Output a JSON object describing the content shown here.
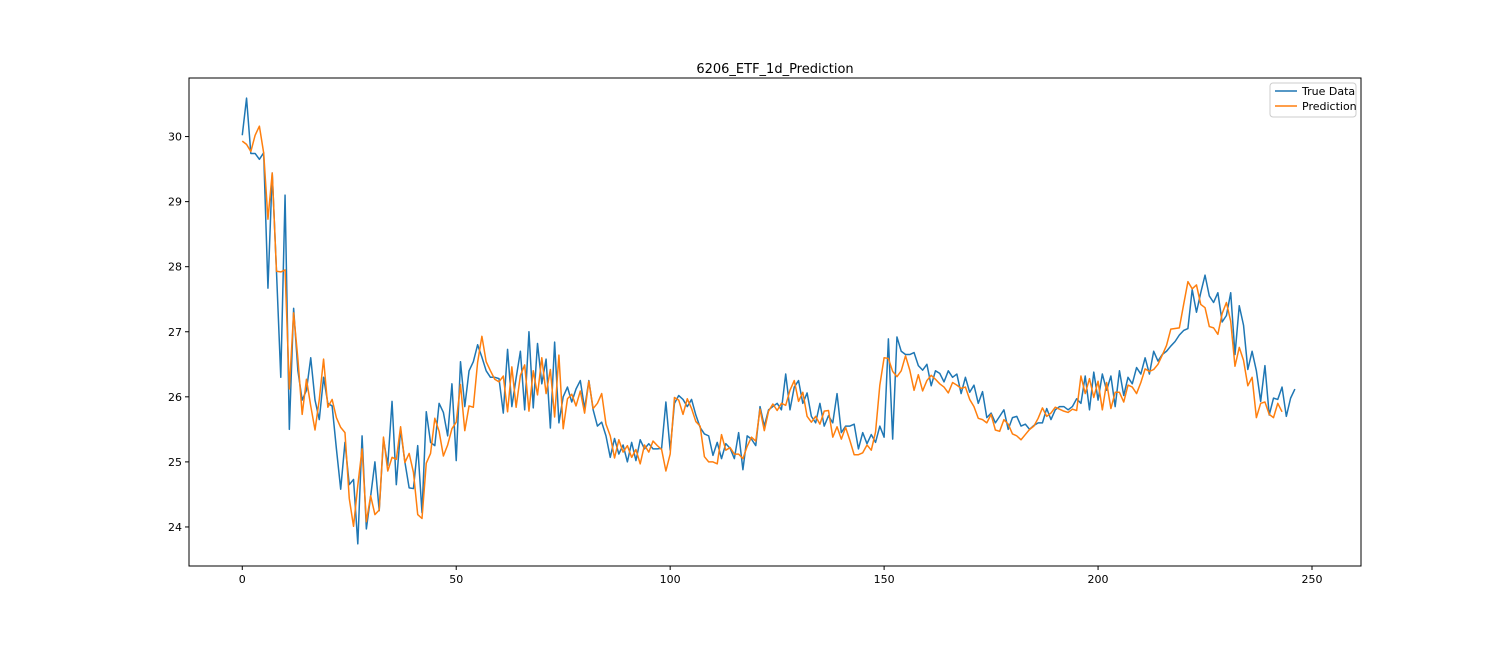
{
  "chart_data": {
    "type": "line",
    "title": "6206_ETF_1d_Prediction",
    "xlabel": "",
    "ylabel": "",
    "xlim": [
      -12.45,
      261.45
    ],
    "ylim": [
      23.4,
      30.9
    ],
    "xticks": [
      0,
      50,
      100,
      150,
      200,
      250
    ],
    "yticks": [
      24,
      25,
      26,
      27,
      28,
      29,
      30
    ],
    "grid": false,
    "legend_position": "upper right",
    "series": [
      {
        "name": "True Data",
        "color": "#1f77b4",
        "values": [
          30.02,
          30.59,
          29.74,
          29.74,
          29.65,
          29.75,
          27.67,
          29.44,
          27.92,
          26.3,
          29.1,
          25.5,
          27.36,
          26.4,
          25.95,
          26.1,
          26.6,
          25.95,
          25.65,
          26.3,
          25.9,
          25.86,
          25.2,
          24.58,
          25.3,
          24.65,
          24.73,
          23.74,
          25.4,
          23.97,
          24.47,
          25,
          24.25,
          25.35,
          24.95,
          25.93,
          24.65,
          25.5,
          25,
          24.6,
          24.59,
          25.25,
          24.22,
          25.77,
          25.3,
          25.25,
          25.9,
          25.76,
          25.4,
          26.2,
          25.02,
          26.54,
          25.85,
          26.4,
          26.54,
          26.8,
          26.61,
          26.4,
          26.3,
          26.3,
          26.28,
          25.75,
          26.73,
          25.85,
          26.29,
          26.7,
          25.8,
          27,
          25.83,
          26.82,
          26.2,
          26.58,
          25.52,
          26.84,
          25.6,
          26,
          26.15,
          25.92,
          26.12,
          26.25,
          25.82,
          26.25,
          25.8,
          25.55,
          25.61,
          25.4,
          25.07,
          25.36,
          25.12,
          25.26,
          25,
          25.3,
          25.02,
          25.34,
          25.2,
          25.28,
          25.2,
          25.2,
          25.21,
          25.92,
          25.18,
          25.9,
          26.02,
          25.96,
          25.85,
          25.96,
          25.72,
          25.53,
          25.43,
          25.4,
          25.1,
          25.3,
          25.05,
          25.28,
          25.21,
          25.05,
          25.45,
          24.88,
          25.4,
          25.35,
          25.25,
          25.85,
          25.55,
          25.8,
          25.85,
          25.9,
          25.8,
          26.35,
          25.8,
          26.15,
          26.25,
          25.9,
          26.06,
          25.7,
          25.6,
          25.9,
          25.55,
          25.71,
          25.6,
          26.05,
          25.45,
          25.55,
          25.55,
          25.58,
          25.2,
          25.45,
          25.28,
          25.42,
          25.3,
          25.55,
          25.38,
          26.89,
          25.35,
          26.92,
          26.7,
          26.65,
          26.65,
          26.68,
          26.48,
          26.41,
          26.5,
          26.17,
          26.4,
          26.36,
          26.23,
          26.4,
          26.3,
          26.35,
          26.05,
          26.3,
          26.07,
          26.18,
          25.9,
          26.08,
          25.68,
          25.75,
          25.6,
          25.7,
          25.8,
          25.5,
          25.68,
          25.7,
          25.55,
          25.58,
          25.5,
          25.56,
          25.6,
          25.6,
          25.82,
          25.65,
          25.8,
          25.85,
          25.85,
          25.8,
          25.85,
          25.97,
          25.9,
          26.32,
          25.8,
          26.38,
          25.95,
          26.35,
          26.1,
          26.32,
          25.85,
          26.4,
          26.02,
          26.3,
          26.2,
          26.45,
          26.35,
          26.6,
          26.35,
          26.7,
          26.55,
          26.65,
          26.7,
          26.78,
          26.85,
          26.95,
          27.02,
          27.05,
          27.65,
          27.3,
          27.6,
          27.87,
          27.55,
          27.45,
          27.6,
          27.15,
          27.25,
          27.6,
          26.65,
          27.4,
          27.1,
          26.42,
          26.7,
          26.4,
          25.93,
          26.48,
          25.72,
          25.98,
          25.96,
          26.15,
          25.7,
          25.98,
          26.12
        ]
      },
      {
        "name": "Prediction",
        "color": "#ff7f0e",
        "values": [
          29.93,
          29.88,
          29.77,
          30.02,
          30.16,
          29.75,
          28.73,
          29.44,
          27.93,
          27.92,
          27.95,
          26.12,
          27.29,
          26.58,
          25.73,
          26.27,
          25.86,
          25.49,
          25.96,
          26.58,
          25.84,
          25.96,
          25.68,
          25.53,
          25.45,
          24.44,
          24.01,
          24.64,
          25.2,
          24.08,
          24.48,
          24.19,
          24.26,
          25.38,
          24.86,
          25.07,
          25.04,
          25.54,
          24.99,
          25.13,
          24.84,
          24.19,
          24.13,
          24.98,
          25.13,
          25.67,
          25.47,
          25.09,
          25.26,
          25.51,
          25.61,
          26.19,
          25.48,
          25.86,
          25.84,
          26.53,
          26.93,
          26.54,
          26.4,
          26.27,
          26.23,
          26.32,
          25.77,
          26.46,
          25.84,
          26.33,
          26.49,
          25.78,
          26.4,
          26.03,
          26.6,
          26.05,
          26.42,
          25.69,
          26.64,
          25.51,
          25.97,
          26.04,
          25.86,
          26.09,
          25.75,
          26.24,
          25.82,
          25.9,
          26.05,
          25.58,
          25.4,
          25.06,
          25.34,
          25.15,
          25.25,
          25.07,
          25.19,
          24.97,
          25.26,
          25.15,
          25.32,
          25.25,
          25.19,
          24.86,
          25.12,
          25.99,
          25.95,
          25.73,
          25.97,
          25.82,
          25.62,
          25.55,
          25.08,
          25,
          25,
          24.97,
          25.42,
          25.18,
          25.22,
          25.12,
          25.12,
          25.05,
          25.24,
          25.38,
          25.32,
          25.81,
          25.48,
          25.78,
          25.89,
          25.79,
          25.9,
          25.87,
          26.1,
          26.25,
          25.93,
          26.07,
          25.7,
          25.61,
          25.7,
          25.58,
          25.78,
          25.79,
          25.38,
          25.54,
          25.35,
          25.53,
          25.33,
          25.11,
          25.11,
          25.14,
          25.26,
          25.18,
          25.46,
          26.18,
          26.6,
          26.59,
          26.39,
          26.31,
          26.4,
          26.63,
          26.41,
          26.1,
          26.34,
          26.09,
          26.25,
          26.33,
          26.27,
          26.2,
          26.15,
          26.06,
          26.22,
          26.18,
          26.13,
          26.15,
          25.96,
          25.85,
          25.67,
          25.65,
          25.6,
          25.73,
          25.49,
          25.47,
          25.65,
          25.58,
          25.43,
          25.4,
          25.34,
          25.42,
          25.5,
          25.55,
          25.67,
          25.83,
          25.7,
          25.75,
          25.84,
          25.81,
          25.78,
          25.76,
          25.81,
          25.79,
          26.32,
          26.05,
          26.28,
          25.99,
          26.24,
          25.8,
          26.22,
          25.82,
          26.07,
          26.07,
          25.92,
          26.18,
          26.15,
          26.05,
          26.22,
          26.43,
          26.39,
          26.42,
          26.5,
          26.64,
          26.79,
          27.04,
          27.05,
          27.06,
          27.42,
          27.77,
          27.66,
          27.72,
          27.42,
          27.37,
          27.08,
          27.06,
          26.96,
          27.28,
          27.45,
          27.16,
          26.47,
          26.76,
          26.56,
          26.17,
          26.3,
          25.68,
          25.9,
          25.92,
          25.73,
          25.68,
          25.9,
          25.77
        ]
      }
    ]
  }
}
